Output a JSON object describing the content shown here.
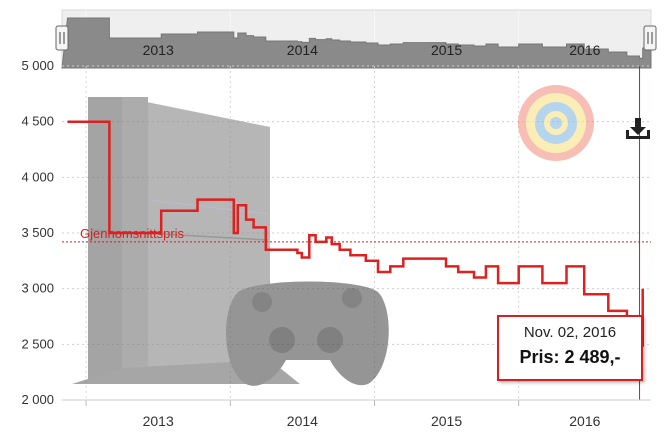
{
  "chart_data": {
    "type": "line",
    "step": true,
    "x_axis": {
      "ticks": [
        "2013",
        "2014",
        "2015",
        "2016"
      ]
    },
    "y_axis": {
      "ticks": [
        "2 000",
        "2 500",
        "3 000",
        "3 500",
        "4 000",
        "4 500",
        "5 000"
      ],
      "ylim": [
        2000,
        5000
      ]
    },
    "grid": true,
    "series": [
      {
        "color": "#dd2020",
        "points": [
          [
            "2012-11-15",
            4500
          ],
          [
            "2013-02-25",
            4500
          ],
          [
            "2013-03-01",
            3500
          ],
          [
            "2013-07-01",
            3500
          ],
          [
            "2013-07-10",
            3700
          ],
          [
            "2013-10-01",
            3700
          ],
          [
            "2013-10-10",
            3800
          ],
          [
            "2014-01-01",
            3800
          ],
          [
            "2014-01-10",
            3500
          ],
          [
            "2014-01-20",
            3750
          ],
          [
            "2014-02-10",
            3620
          ],
          [
            "2014-03-01",
            3550
          ],
          [
            "2014-04-01",
            3350
          ],
          [
            "2014-05-15",
            3350
          ],
          [
            "2014-06-01",
            3350
          ],
          [
            "2014-06-20",
            3320
          ],
          [
            "2014-07-01",
            3280
          ],
          [
            "2014-07-20",
            3480
          ],
          [
            "2014-08-05",
            3420
          ],
          [
            "2014-09-01",
            3460
          ],
          [
            "2014-09-15",
            3400
          ],
          [
            "2014-10-05",
            3350
          ],
          [
            "2014-11-01",
            3300
          ],
          [
            "2014-12-10",
            3250
          ],
          [
            "2015-01-10",
            3150
          ],
          [
            "2015-02-10",
            3200
          ],
          [
            "2015-03-15",
            3270
          ],
          [
            "2015-05-01",
            3270
          ],
          [
            "2015-07-01",
            3200
          ],
          [
            "2015-08-01",
            3150
          ],
          [
            "2015-09-10",
            3100
          ],
          [
            "2015-10-10",
            3200
          ],
          [
            "2015-11-10",
            3050
          ],
          [
            "2016-01-01",
            3200
          ],
          [
            "2016-03-01",
            3050
          ],
          [
            "2016-05-01",
            3200
          ],
          [
            "2016-06-15",
            2950
          ],
          [
            "2016-08-15",
            2800
          ],
          [
            "2016-10-01",
            2600
          ],
          [
            "2016-11-02",
            2489
          ],
          [
            "2016-11-10",
            3000
          ]
        ]
      }
    ],
    "average": {
      "label": "Gjennomsnittspris",
      "value": 3420,
      "color": "#d42020"
    },
    "navigator": {
      "ticks": [
        "2013",
        "2014",
        "2015",
        "2016"
      ]
    },
    "tooltip": {
      "date": "Nov. 02, 2016",
      "price_label": "Pris: 2 489,-"
    }
  },
  "icons": {
    "download": "download-icon",
    "watermark": "target-icon",
    "background": "console-image"
  }
}
